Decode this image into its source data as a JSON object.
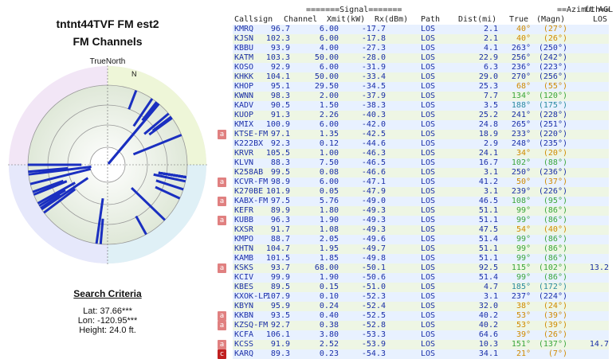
{
  "left": {
    "title": "tntnt44TVF FM est2",
    "subtitle": "FM Channels",
    "polar_label_top": "TrueNorth",
    "polar_label_n": "N",
    "criteria_title": "Search Criteria",
    "lat": "Lat: 37.66***",
    "lon": "Lon: -120.95***",
    "height": "Height: 24.0 ft."
  },
  "header": {
    "signal": "=======Signal=======",
    "azimuth": "==Azimuth==",
    "ftagl": "ft AGL",
    "callsign": "Callsign",
    "channel": "Channel",
    "xmit": "Xmit(kW)",
    "rx": "Rx(dBm)",
    "path": "Path",
    "dist": "Dist(mi)",
    "true": "True",
    "magn": "(Magn)",
    "los": "LOS"
  },
  "colors": {
    "azimuth_orange": "#d08a00",
    "azimuth_green": "#3aa63a",
    "azimuth_teal": "#2a8aa0",
    "azimuth_blue": "#1a2fa8",
    "bar_blue": "#1a2fc0",
    "badge": "#e08080"
  },
  "rows": [
    {
      "callsign": "KMRQ",
      "channel": "96.7",
      "xmit": "6.00",
      "rx": "-17.7",
      "path": "LOS",
      "dist": "2.1",
      "true": "40°",
      "magn": "(27°)",
      "agl": "",
      "az_color": "orange",
      "badge": ""
    },
    {
      "callsign": "KJSN",
      "channel": "102.3",
      "xmit": "6.00",
      "rx": "-17.8",
      "path": "LOS",
      "dist": "2.1",
      "true": "40°",
      "magn": "(26°)",
      "agl": "",
      "az_color": "orange",
      "badge": ""
    },
    {
      "callsign": "KBBU",
      "channel": "93.9",
      "xmit": "4.00",
      "rx": "-27.3",
      "path": "LOS",
      "dist": "4.1",
      "true": "263°",
      "magn": "(250°)",
      "agl": "",
      "az_color": "blue",
      "badge": ""
    },
    {
      "callsign": "KATM",
      "channel": "103.3",
      "xmit": "50.00",
      "rx": "-28.0",
      "path": "LOS",
      "dist": "22.9",
      "true": "256°",
      "magn": "(242°)",
      "agl": "",
      "az_color": "blue",
      "badge": ""
    },
    {
      "callsign": "KOSO",
      "channel": "92.9",
      "xmit": "6.00",
      "rx": "-31.9",
      "path": "LOS",
      "dist": "6.3",
      "true": "236°",
      "magn": "(223°)",
      "agl": "",
      "az_color": "blue",
      "badge": ""
    },
    {
      "callsign": "KHKK",
      "channel": "104.1",
      "xmit": "50.00",
      "rx": "-33.4",
      "path": "LOS",
      "dist": "29.0",
      "true": "270°",
      "magn": "(256°)",
      "agl": "",
      "az_color": "blue",
      "badge": ""
    },
    {
      "callsign": "KHOP",
      "channel": "95.1",
      "xmit": "29.50",
      "rx": "-34.5",
      "path": "LOS",
      "dist": "25.3",
      "true": "68°",
      "magn": "(55°)",
      "agl": "",
      "az_color": "orange",
      "badge": ""
    },
    {
      "callsign": "KWNN",
      "channel": "98.3",
      "xmit": "2.00",
      "rx": "-37.9",
      "path": "LOS",
      "dist": "7.7",
      "true": "134°",
      "magn": "(120°)",
      "agl": "",
      "az_color": "green",
      "badge": ""
    },
    {
      "callsign": "KADV",
      "channel": "90.5",
      "xmit": "1.50",
      "rx": "-38.3",
      "path": "LOS",
      "dist": "3.5",
      "true": "188°",
      "magn": "(175°)",
      "agl": "",
      "az_color": "teal",
      "badge": ""
    },
    {
      "callsign": "KUOP",
      "channel": "91.3",
      "xmit": "2.26",
      "rx": "-40.3",
      "path": "LOS",
      "dist": "25.2",
      "true": "241°",
      "magn": "(228°)",
      "agl": "",
      "az_color": "blue",
      "badge": ""
    },
    {
      "callsign": "KMIX",
      "channel": "100.9",
      "xmit": "6.00",
      "rx": "-42.0",
      "path": "LOS",
      "dist": "24.8",
      "true": "265°",
      "magn": "(251°)",
      "agl": "",
      "az_color": "blue",
      "badge": ""
    },
    {
      "callsign": "KTSE-FM",
      "channel": "97.1",
      "xmit": "1.35",
      "rx": "-42.5",
      "path": "LOS",
      "dist": "18.9",
      "true": "233°",
      "magn": "(220°)",
      "agl": "",
      "az_color": "blue",
      "badge": "a"
    },
    {
      "callsign": "K222BX",
      "channel": "92.3",
      "xmit": "0.12",
      "rx": "-44.6",
      "path": "LOS",
      "dist": "2.9",
      "true": "248°",
      "magn": "(235°)",
      "agl": "",
      "az_color": "blue",
      "badge": ""
    },
    {
      "callsign": "KRVR",
      "channel": "105.5",
      "xmit": "1.00",
      "rx": "-46.3",
      "path": "LOS",
      "dist": "24.1",
      "true": "34°",
      "magn": "(20°)",
      "agl": "",
      "az_color": "orange",
      "badge": ""
    },
    {
      "callsign": "KLVN",
      "channel": "88.3",
      "xmit": "7.50",
      "rx": "-46.5",
      "path": "LOS",
      "dist": "16.7",
      "true": "102°",
      "magn": "(88°)",
      "agl": "",
      "az_color": "green",
      "badge": ""
    },
    {
      "callsign": "K258AB",
      "channel": "99.5",
      "xmit": "0.08",
      "rx": "-46.6",
      "path": "LOS",
      "dist": "3.1",
      "true": "250°",
      "magn": "(236°)",
      "agl": "",
      "az_color": "blue",
      "badge": ""
    },
    {
      "callsign": "KCVR-FM",
      "channel": "98.9",
      "xmit": "6.00",
      "rx": "-47.1",
      "path": "LOS",
      "dist": "41.2",
      "true": "50°",
      "magn": "(37°)",
      "agl": "",
      "az_color": "orange",
      "badge": "a"
    },
    {
      "callsign": "K270BE",
      "channel": "101.9",
      "xmit": "0.05",
      "rx": "-47.9",
      "path": "LOS",
      "dist": "3.1",
      "true": "239°",
      "magn": "(226°)",
      "agl": "",
      "az_color": "blue",
      "badge": ""
    },
    {
      "callsign": "KABX-FM",
      "channel": "97.5",
      "xmit": "5.76",
      "rx": "-49.0",
      "path": "LOS",
      "dist": "46.5",
      "true": "108°",
      "magn": "(95°)",
      "agl": "",
      "az_color": "green",
      "badge": "a"
    },
    {
      "callsign": "KEFR",
      "channel": "89.9",
      "xmit": "1.80",
      "rx": "-49.3",
      "path": "LOS",
      "dist": "51.1",
      "true": "99°",
      "magn": "(86°)",
      "agl": "",
      "az_color": "green",
      "badge": ""
    },
    {
      "callsign": "KUBB",
      "channel": "96.3",
      "xmit": "1.90",
      "rx": "-49.3",
      "path": "LOS",
      "dist": "51.1",
      "true": "99°",
      "magn": "(86°)",
      "agl": "",
      "az_color": "green",
      "badge": "a"
    },
    {
      "callsign": "KXSR",
      "channel": "91.7",
      "xmit": "1.08",
      "rx": "-49.3",
      "path": "LOS",
      "dist": "47.5",
      "true": "54°",
      "magn": "(40°)",
      "agl": "",
      "az_color": "orange",
      "badge": ""
    },
    {
      "callsign": "KMPO",
      "channel": "88.7",
      "xmit": "2.05",
      "rx": "-49.6",
      "path": "LOS",
      "dist": "51.4",
      "true": "99°",
      "magn": "(86°)",
      "agl": "",
      "az_color": "green",
      "badge": ""
    },
    {
      "callsign": "KHTN",
      "channel": "104.7",
      "xmit": "1.95",
      "rx": "-49.7",
      "path": "LOS",
      "dist": "51.1",
      "true": "99°",
      "magn": "(86°)",
      "agl": "",
      "az_color": "green",
      "badge": ""
    },
    {
      "callsign": "KAMB",
      "channel": "101.5",
      "xmit": "1.85",
      "rx": "-49.8",
      "path": "LOS",
      "dist": "51.1",
      "true": "99°",
      "magn": "(86°)",
      "agl": "",
      "az_color": "green",
      "badge": ""
    },
    {
      "callsign": "KSKS",
      "channel": "93.7",
      "xmit": "68.00",
      "rx": "-50.1",
      "path": "LOS",
      "dist": "92.5",
      "true": "115°",
      "magn": "(102°)",
      "agl": "13.2",
      "az_color": "green",
      "badge": "a"
    },
    {
      "callsign": "KCIV",
      "channel": "99.9",
      "xmit": "1.90",
      "rx": "-50.6",
      "path": "LOS",
      "dist": "51.4",
      "true": "99°",
      "magn": "(86°)",
      "agl": "",
      "az_color": "green",
      "badge": ""
    },
    {
      "callsign": "KBES",
      "channel": "89.5",
      "xmit": "0.15",
      "rx": "-51.0",
      "path": "LOS",
      "dist": "4.7",
      "true": "185°",
      "magn": "(172°)",
      "agl": "",
      "az_color": "teal",
      "badge": ""
    },
    {
      "callsign": "KXOK-LP",
      "channel": "107.9",
      "xmit": "0.10",
      "rx": "-52.3",
      "path": "LOS",
      "dist": "3.1",
      "true": "237°",
      "magn": "(224°)",
      "agl": "",
      "az_color": "blue",
      "badge": ""
    },
    {
      "callsign": "KBYN",
      "channel": "95.9",
      "xmit": "0.24",
      "rx": "-52.4",
      "path": "LOS",
      "dist": "32.0",
      "true": "38°",
      "magn": "(24°)",
      "agl": "",
      "az_color": "orange",
      "badge": ""
    },
    {
      "callsign": "KKBN",
      "channel": "93.5",
      "xmit": "0.40",
      "rx": "-52.5",
      "path": "LOS",
      "dist": "40.2",
      "true": "53°",
      "magn": "(39°)",
      "agl": "",
      "az_color": "orange",
      "badge": "a"
    },
    {
      "callsign": "KZSQ-FM",
      "channel": "92.7",
      "xmit": "0.38",
      "rx": "-52.8",
      "path": "LOS",
      "dist": "40.2",
      "true": "53°",
      "magn": "(39°)",
      "agl": "",
      "az_color": "orange",
      "badge": "a"
    },
    {
      "callsign": "KCFA",
      "channel": "106.1",
      "xmit": "3.80",
      "rx": "-53.3",
      "path": "LOS",
      "dist": "64.6",
      "true": "39°",
      "magn": "(26°)",
      "agl": "",
      "az_color": "orange",
      "badge": ""
    },
    {
      "callsign": "KCSS",
      "channel": "91.9",
      "xmit": "2.52",
      "rx": "-53.9",
      "path": "LOS",
      "dist": "10.3",
      "true": "151°",
      "magn": "(137°)",
      "agl": "14.7",
      "az_color": "green",
      "badge": "a"
    },
    {
      "callsign": "KARQ",
      "channel": "89.3",
      "xmit": "0.23",
      "rx": "-54.3",
      "path": "LOS",
      "dist": "34.1",
      "true": "21°",
      "magn": "(7°)",
      "agl": "",
      "az_color": "orange",
      "badge": "c"
    }
  ]
}
